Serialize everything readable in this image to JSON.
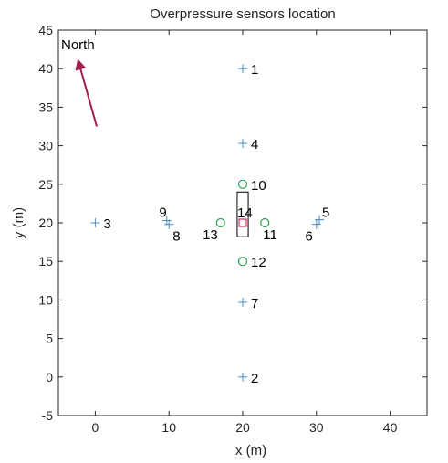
{
  "chart_data": {
    "type": "scatter",
    "title": "Overpressure sensors location",
    "xlabel": "x (m)",
    "ylabel": "y (m)",
    "xlim": [
      -5,
      45
    ],
    "ylim": [
      -5,
      45
    ],
    "x_ticks": [
      0,
      10,
      20,
      30,
      40
    ],
    "y_ticks": [
      -5,
      0,
      5,
      10,
      15,
      20,
      25,
      30,
      35,
      40,
      45
    ],
    "grid": false,
    "colors": {
      "plus_marker": "#4a8bc2",
      "circle_marker": "#2e9e4f",
      "square_marker": "#d1325f",
      "arrow": "#a51e4a",
      "rectangle": "#000000"
    },
    "points": [
      {
        "label": "1",
        "x": 20,
        "y": 40,
        "marker": "plus"
      },
      {
        "label": "2",
        "x": 20,
        "y": 0,
        "marker": "plus"
      },
      {
        "label": "3",
        "x": 0,
        "y": 20,
        "marker": "plus"
      },
      {
        "label": "4",
        "x": 20,
        "y": 30.3,
        "marker": "plus"
      },
      {
        "label": "5",
        "x": 30.4,
        "y": 20.4,
        "marker": "plus"
      },
      {
        "label": "6",
        "x": 30,
        "y": 19.8,
        "marker": "plus"
      },
      {
        "label": "7",
        "x": 20,
        "y": 9.7,
        "marker": "plus"
      },
      {
        "label": "8",
        "x": 10,
        "y": 19.8,
        "marker": "plus"
      },
      {
        "label": "9",
        "x": 9.7,
        "y": 20.3,
        "marker": "plus"
      },
      {
        "label": "10",
        "x": 20,
        "y": 25,
        "marker": "circle"
      },
      {
        "label": "11",
        "x": 23,
        "y": 20,
        "marker": "circle"
      },
      {
        "label": "12",
        "x": 20,
        "y": 15,
        "marker": "circle"
      },
      {
        "label": "13",
        "x": 17,
        "y": 20,
        "marker": "circle"
      },
      {
        "label": "14",
        "x": 20,
        "y": 20,
        "marker": "square"
      }
    ],
    "rectangle": {
      "x_min": 19.25,
      "x_max": 20.75,
      "y_min": 18.2,
      "y_max": 24
    },
    "annotation": {
      "text": "North",
      "from": [
        0.2,
        32.5
      ],
      "to": [
        -2.3,
        41
      ]
    }
  }
}
